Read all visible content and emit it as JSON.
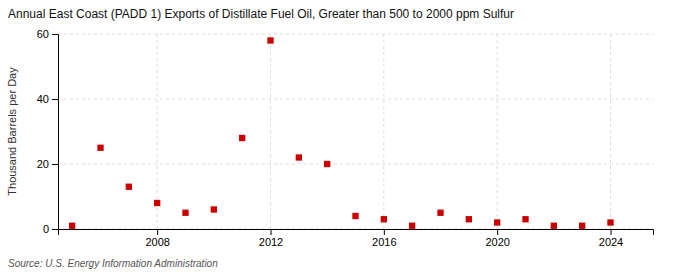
{
  "chart_data": {
    "type": "scatter",
    "title": "Annual East Coast (PADD 1) Exports of Distillate Fuel Oil, Greater than 500 to 2000 ppm Sulfur",
    "ylabel": "Thousand Barrels per Day",
    "source": "Source: U.S. Energy Information Administration",
    "x": [
      2005,
      2006,
      2007,
      2008,
      2009,
      2010,
      2011,
      2012,
      2013,
      2014,
      2015,
      2016,
      2017,
      2018,
      2019,
      2020,
      2021,
      2022,
      2023,
      2024
    ],
    "values": [
      1.0,
      25.0,
      13.0,
      8.0,
      5.0,
      6.0,
      28.0,
      58.0,
      22.0,
      20.0,
      4.0,
      3.0,
      1.0,
      5.0,
      3.0,
      2.0,
      3.0,
      1.0,
      1.0,
      2.0
    ],
    "color": "#cc0000",
    "marker": "square",
    "grid": true,
    "xlim": [
      2004.5,
      2025.5
    ],
    "xticks": [
      2008,
      2012,
      2016,
      2020,
      2024
    ],
    "ylim": [
      0,
      60
    ],
    "yticks": [
      0,
      20,
      40,
      60
    ]
  }
}
